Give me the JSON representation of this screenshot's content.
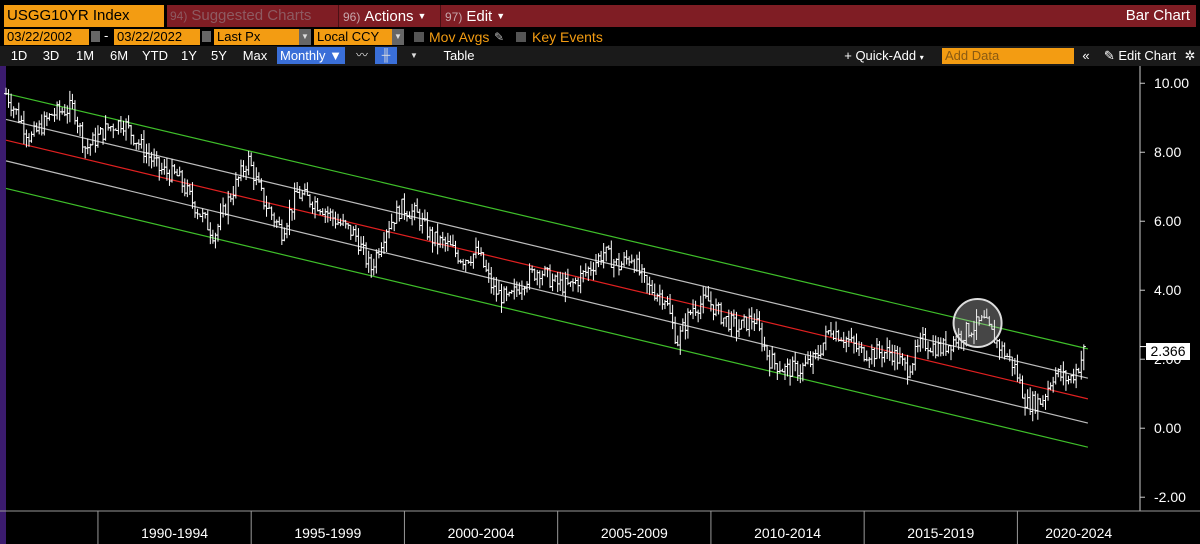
{
  "header": {
    "ticker": "USGG10YR Index",
    "suggested": {
      "num": "94)",
      "label": "Suggested Charts"
    },
    "actions": {
      "num": "96)",
      "label": "Actions"
    },
    "edit": {
      "num": "97)",
      "label": "Edit"
    },
    "chart_kind": "Bar Chart"
  },
  "controls": {
    "start_date": "03/22/2002",
    "end_date": "03/22/2022",
    "price_field": "Last Px",
    "currency": "Local CCY",
    "mov_avgs": "Mov Avgs",
    "key_events": "Key Events"
  },
  "toolbar": {
    "periods": [
      "1D",
      "3D",
      "1M",
      "6M",
      "YTD",
      "1Y",
      "5Y",
      "Max"
    ],
    "frequency": "Monthly",
    "table": "Table",
    "quick_add": "Quick-Add",
    "add_data_placeholder": "Add Data",
    "edit_chart": "Edit Chart"
  },
  "colors": {
    "background": "#000000",
    "price_bars": "#ffffff",
    "regression_line": "#e02020",
    "inner_band": "#bdbdbd",
    "outer_band": "#3fbf2a",
    "toolbar_orange": "#f39c12",
    "header_red": "#7f1d24",
    "selected_blue": "#3a6fd8"
  },
  "chart_data": {
    "type": "bar",
    "title": "",
    "y_tick_labels": [
      "10.00",
      "8.00",
      "6.00",
      "4.00",
      "2.00",
      "0.00",
      "-2.00"
    ],
    "ylim": [
      -2.4,
      10.5
    ],
    "xlim": [
      1987.0,
      2024.0
    ],
    "x_period_labels": [
      "1990-1994",
      "1995-1999",
      "2000-2004",
      "2005-2009",
      "2010-2014",
      "2015-2019",
      "2020-2024"
    ],
    "last_value": "2.366",
    "price_path": [
      [
        1987.0,
        9.7
      ],
      [
        1987.8,
        8.4
      ],
      [
        1988.5,
        9.1
      ],
      [
        1989.2,
        9.3
      ],
      [
        1989.6,
        8.1
      ],
      [
        1990.3,
        8.7
      ],
      [
        1990.8,
        8.9
      ],
      [
        1991.3,
        8.3
      ],
      [
        1992.0,
        7.5
      ],
      [
        1992.6,
        7.3
      ],
      [
        1993.2,
        6.4
      ],
      [
        1993.8,
        5.6
      ],
      [
        1994.3,
        6.7
      ],
      [
        1994.9,
        7.8
      ],
      [
        1995.4,
        6.6
      ],
      [
        1996.0,
        5.7
      ],
      [
        1996.5,
        6.8
      ],
      [
        1997.2,
        6.5
      ],
      [
        1997.8,
        6.0
      ],
      [
        1998.4,
        5.6
      ],
      [
        1998.9,
        4.6
      ],
      [
        1999.4,
        5.8
      ],
      [
        1999.9,
        6.4
      ],
      [
        2000.4,
        6.2
      ],
      [
        2000.9,
        5.5
      ],
      [
        2001.4,
        5.3
      ],
      [
        2001.9,
        4.9
      ],
      [
        2002.4,
        5.1
      ],
      [
        2002.9,
        4.0
      ],
      [
        2003.4,
        3.7
      ],
      [
        2003.9,
        4.3
      ],
      [
        2004.4,
        4.6
      ],
      [
        2004.9,
        4.2
      ],
      [
        2005.4,
        4.1
      ],
      [
        2005.9,
        4.5
      ],
      [
        2006.5,
        5.1
      ],
      [
        2007.0,
        4.7
      ],
      [
        2007.4,
        5.0
      ],
      [
        2007.9,
        4.1
      ],
      [
        2008.5,
        3.8
      ],
      [
        2008.9,
        2.5
      ],
      [
        2009.4,
        3.5
      ],
      [
        2009.9,
        3.7
      ],
      [
        2010.4,
        3.2
      ],
      [
        2010.9,
        2.9
      ],
      [
        2011.4,
        3.2
      ],
      [
        2011.9,
        2.0
      ],
      [
        2012.4,
        1.7
      ],
      [
        2012.9,
        1.7
      ],
      [
        2013.4,
        2.0
      ],
      [
        2013.9,
        2.9
      ],
      [
        2014.4,
        2.6
      ],
      [
        2014.9,
        2.2
      ],
      [
        2015.4,
        2.2
      ],
      [
        2015.9,
        2.2
      ],
      [
        2016.4,
        1.7
      ],
      [
        2016.9,
        2.5
      ],
      [
        2017.5,
        2.3
      ],
      [
        2018.0,
        2.6
      ],
      [
        2018.5,
        2.9
      ],
      [
        2018.9,
        3.1
      ],
      [
        2019.4,
        2.4
      ],
      [
        2019.9,
        1.8
      ],
      [
        2020.3,
        0.7
      ],
      [
        2020.8,
        0.8
      ],
      [
        2021.2,
        1.6
      ],
      [
        2021.7,
        1.4
      ],
      [
        2022.0,
        1.8
      ],
      [
        2022.22,
        2.366
      ]
    ],
    "regression": {
      "x": [
        1987.0,
        2022.3
      ],
      "y": [
        8.35,
        0.85
      ]
    },
    "inner_band": {
      "upper": [
        8.95,
        1.45
      ],
      "lower": [
        7.75,
        0.15
      ]
    },
    "outer_band": {
      "upper": [
        9.7,
        2.3
      ],
      "lower": [
        6.95,
        -0.55
      ]
    },
    "highlight": {
      "x": 2018.7,
      "y": 3.05
    }
  }
}
